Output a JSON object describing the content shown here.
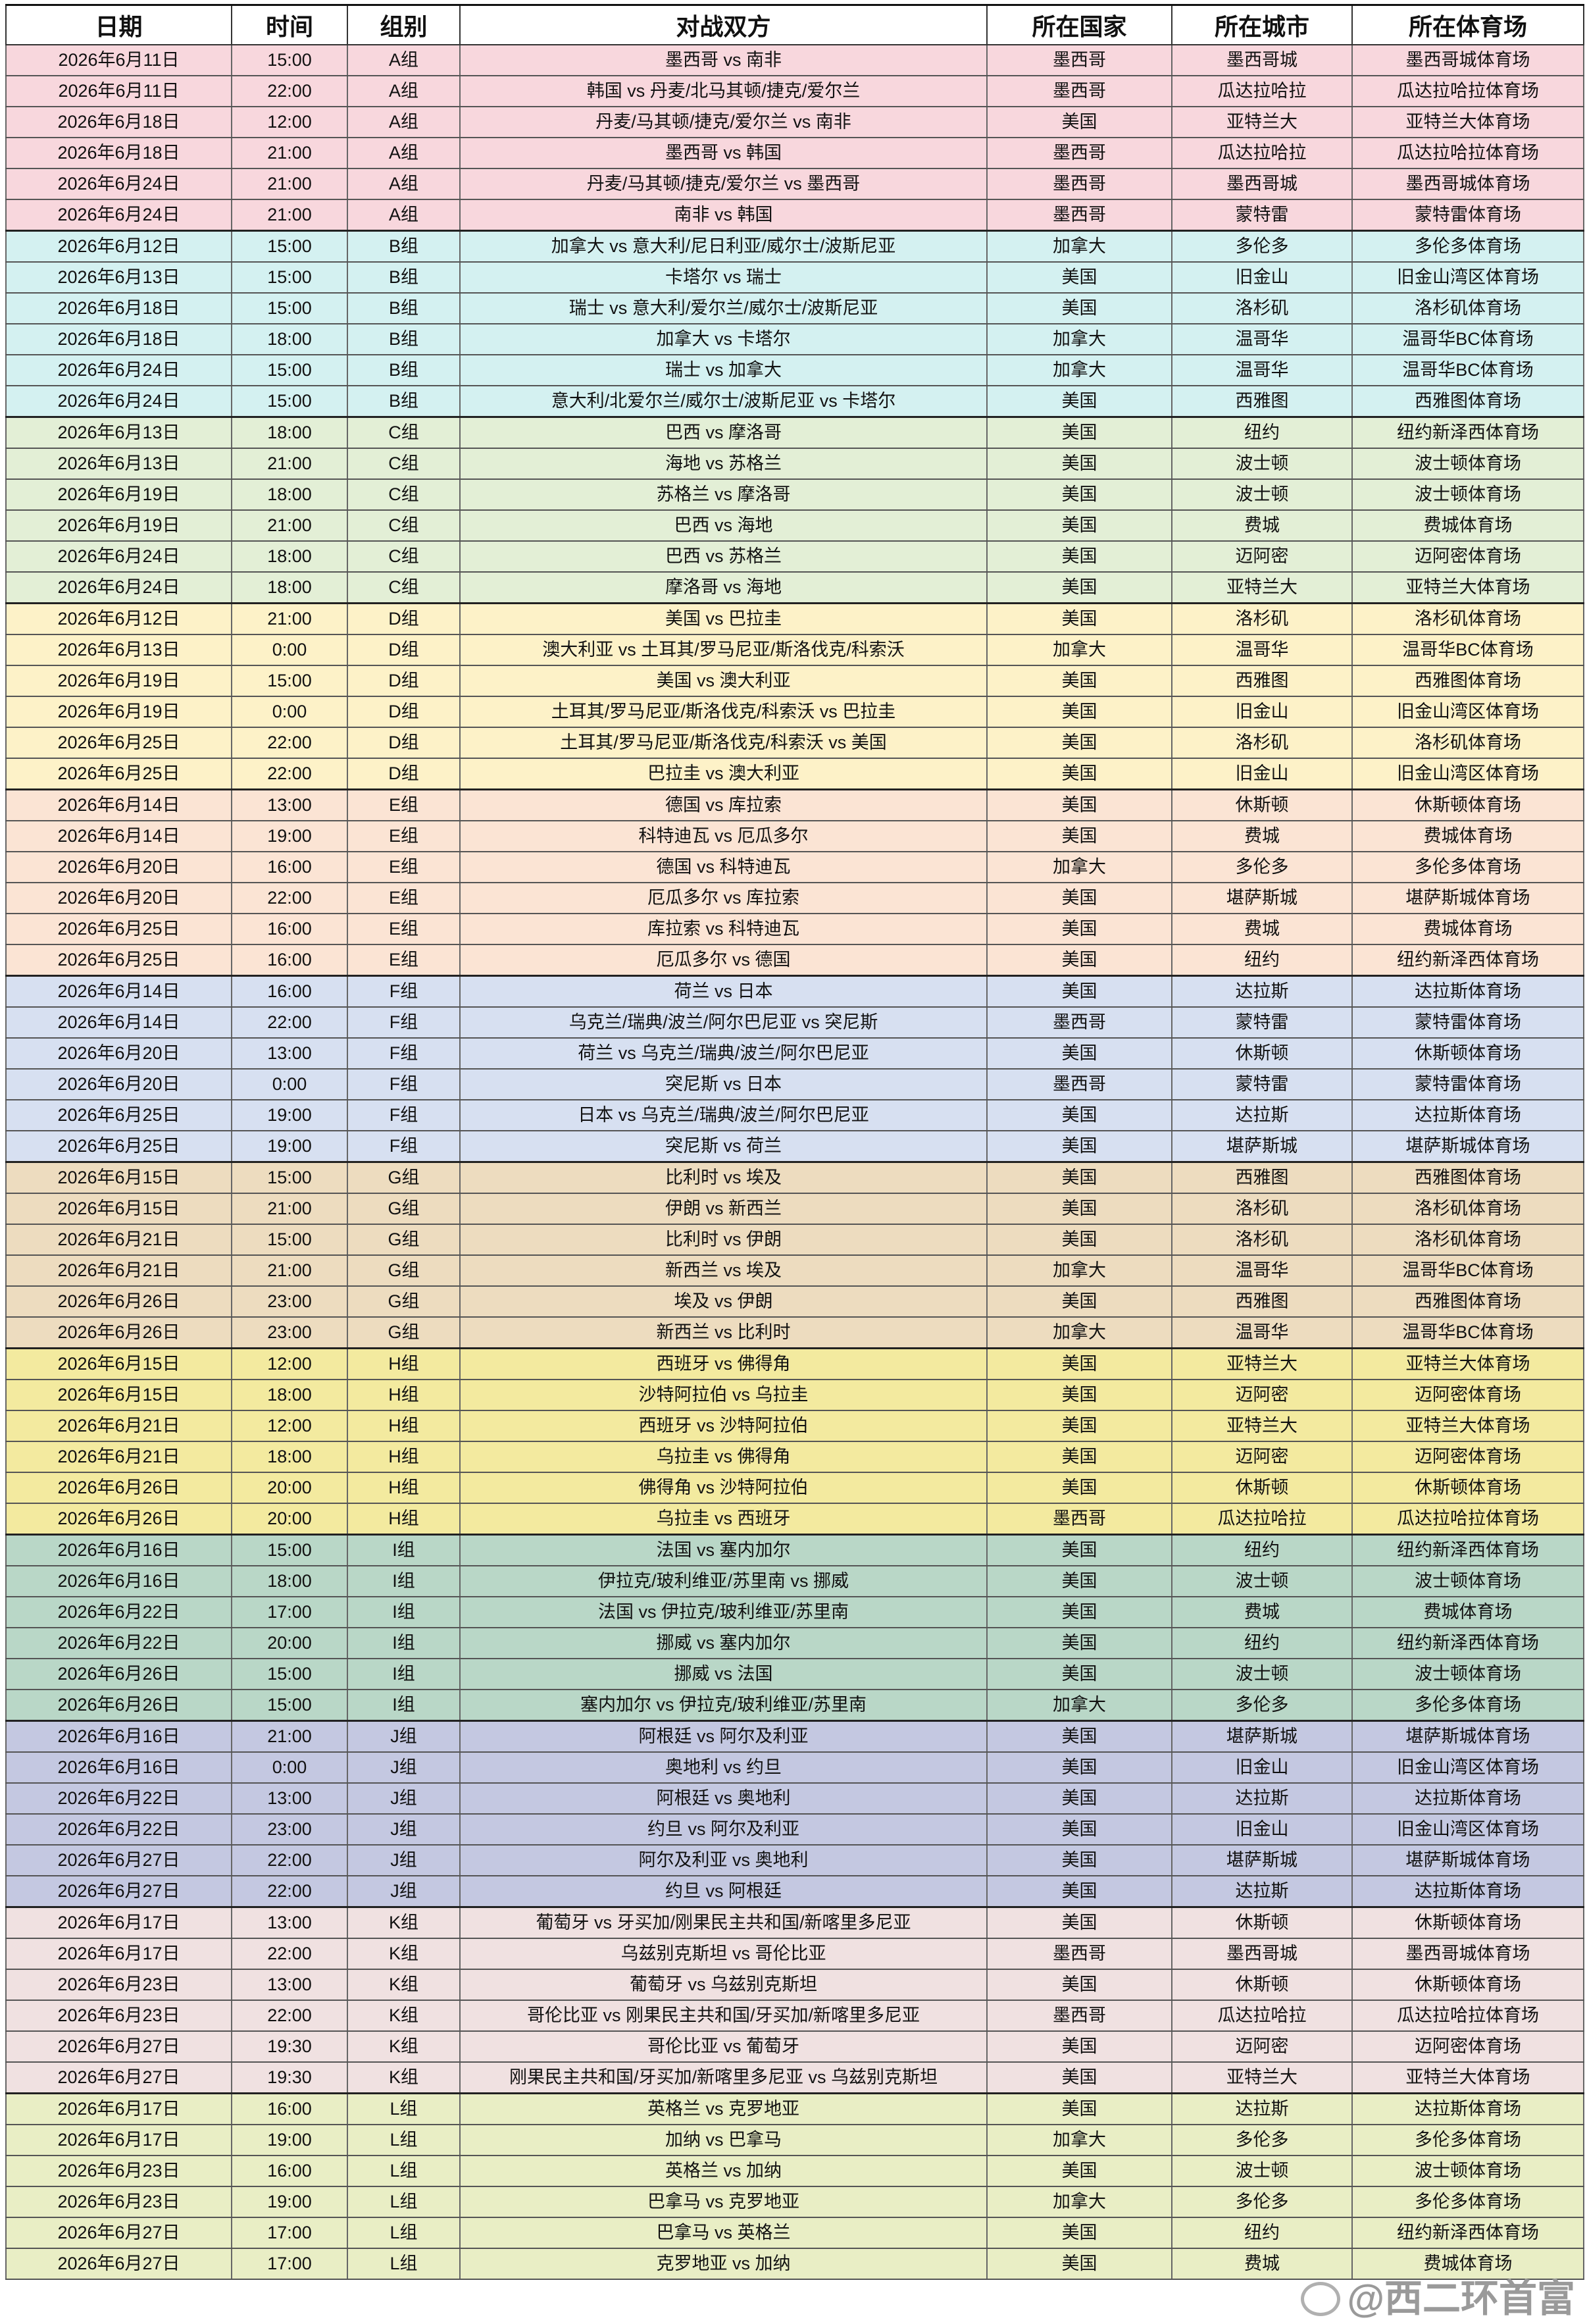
{
  "headers": [
    "日期",
    "时间",
    "组别",
    "对战双方",
    "所在国家",
    "所在城市",
    "所在体育场"
  ],
  "group_colors": {
    "A组": "#f8d7dd",
    "B组": "#d4f1f1",
    "C组": "#e3efd6",
    "D组": "#fdf2c8",
    "E组": "#fbe4d4",
    "F组": "#d7e0f1",
    "G组": "#eddcbf",
    "H组": "#f3ea9f",
    "I组": "#b9d7c7",
    "J组": "#c4c8e1",
    "K组": "#f0e1e1",
    "L组": "#e9eec5"
  },
  "rows": [
    [
      "2026年6月11日",
      "15:00",
      "A组",
      "墨西哥 vs 南非",
      "墨西哥",
      "墨西哥城",
      "墨西哥城体育场"
    ],
    [
      "2026年6月11日",
      "22:00",
      "A组",
      "韩国 vs 丹麦/北马其顿/捷克/爱尔兰",
      "墨西哥",
      "瓜达拉哈拉",
      "瓜达拉哈拉体育场"
    ],
    [
      "2026年6月18日",
      "12:00",
      "A组",
      "丹麦/马其顿/捷克/爱尔兰 vs 南非",
      "美国",
      "亚特兰大",
      "亚特兰大体育场"
    ],
    [
      "2026年6月18日",
      "21:00",
      "A组",
      "墨西哥 vs 韩国",
      "墨西哥",
      "瓜达拉哈拉",
      "瓜达拉哈拉体育场"
    ],
    [
      "2026年6月24日",
      "21:00",
      "A组",
      "丹麦/马其顿/捷克/爱尔兰 vs 墨西哥",
      "墨西哥",
      "墨西哥城",
      "墨西哥城体育场"
    ],
    [
      "2026年6月24日",
      "21:00",
      "A组",
      "南非 vs 韩国",
      "墨西哥",
      "蒙特雷",
      "蒙特雷体育场"
    ],
    [
      "2026年6月12日",
      "15:00",
      "B组",
      "加拿大 vs 意大利/尼日利亚/威尔士/波斯尼亚",
      "加拿大",
      "多伦多",
      "多伦多体育场"
    ],
    [
      "2026年6月13日",
      "15:00",
      "B组",
      "卡塔尔 vs 瑞士",
      "美国",
      "旧金山",
      "旧金山湾区体育场"
    ],
    [
      "2026年6月18日",
      "15:00",
      "B组",
      "瑞士 vs 意大利/爱尔兰/威尔士/波斯尼亚",
      "美国",
      "洛杉矶",
      "洛杉矶体育场"
    ],
    [
      "2026年6月18日",
      "18:00",
      "B组",
      "加拿大 vs 卡塔尔",
      "加拿大",
      "温哥华",
      "温哥华BC体育场"
    ],
    [
      "2026年6月24日",
      "15:00",
      "B组",
      "瑞士 vs 加拿大",
      "加拿大",
      "温哥华",
      "温哥华BC体育场"
    ],
    [
      "2026年6月24日",
      "15:00",
      "B组",
      "意大利/北爱尔兰/威尔士/波斯尼亚 vs 卡塔尔",
      "美国",
      "西雅图",
      "西雅图体育场"
    ],
    [
      "2026年6月13日",
      "18:00",
      "C组",
      "巴西 vs 摩洛哥",
      "美国",
      "纽约",
      "纽约新泽西体育场"
    ],
    [
      "2026年6月13日",
      "21:00",
      "C组",
      "海地 vs 苏格兰",
      "美国",
      "波士顿",
      "波士顿体育场"
    ],
    [
      "2026年6月19日",
      "18:00",
      "C组",
      "苏格兰 vs 摩洛哥",
      "美国",
      "波士顿",
      "波士顿体育场"
    ],
    [
      "2026年6月19日",
      "21:00",
      "C组",
      "巴西 vs 海地",
      "美国",
      "费城",
      "费城体育场"
    ],
    [
      "2026年6月24日",
      "18:00",
      "C组",
      "巴西 vs 苏格兰",
      "美国",
      "迈阿密",
      "迈阿密体育场"
    ],
    [
      "2026年6月24日",
      "18:00",
      "C组",
      "摩洛哥 vs 海地",
      "美国",
      "亚特兰大",
      "亚特兰大体育场"
    ],
    [
      "2026年6月12日",
      "21:00",
      "D组",
      "美国 vs 巴拉圭",
      "美国",
      "洛杉矶",
      "洛杉矶体育场"
    ],
    [
      "2026年6月13日",
      "0:00",
      "D组",
      "澳大利亚 vs 土耳其/罗马尼亚/斯洛伐克/科索沃",
      "加拿大",
      "温哥华",
      "温哥华BC体育场"
    ],
    [
      "2026年6月19日",
      "15:00",
      "D组",
      "美国 vs 澳大利亚",
      "美国",
      "西雅图",
      "西雅图体育场"
    ],
    [
      "2026年6月19日",
      "0:00",
      "D组",
      "土耳其/罗马尼亚/斯洛伐克/科索沃 vs 巴拉圭",
      "美国",
      "旧金山",
      "旧金山湾区体育场"
    ],
    [
      "2026年6月25日",
      "22:00",
      "D组",
      "土耳其/罗马尼亚/斯洛伐克/科索沃 vs 美国",
      "美国",
      "洛杉矶",
      "洛杉矶体育场"
    ],
    [
      "2026年6月25日",
      "22:00",
      "D组",
      "巴拉圭 vs 澳大利亚",
      "美国",
      "旧金山",
      "旧金山湾区体育场"
    ],
    [
      "2026年6月14日",
      "13:00",
      "E组",
      "德国 vs 库拉索",
      "美国",
      "休斯顿",
      "休斯顿体育场"
    ],
    [
      "2026年6月14日",
      "19:00",
      "E组",
      "科特迪瓦 vs 厄瓜多尔",
      "美国",
      "费城",
      "费城体育场"
    ],
    [
      "2026年6月20日",
      "16:00",
      "E组",
      "德国 vs 科特迪瓦",
      "加拿大",
      "多伦多",
      "多伦多体育场"
    ],
    [
      "2026年6月20日",
      "22:00",
      "E组",
      "厄瓜多尔 vs 库拉索",
      "美国",
      "堪萨斯城",
      "堪萨斯城体育场"
    ],
    [
      "2026年6月25日",
      "16:00",
      "E组",
      "库拉索 vs 科特迪瓦",
      "美国",
      "费城",
      "费城体育场"
    ],
    [
      "2026年6月25日",
      "16:00",
      "E组",
      "厄瓜多尔 vs 德国",
      "美国",
      "纽约",
      "纽约新泽西体育场"
    ],
    [
      "2026年6月14日",
      "16:00",
      "F组",
      "荷兰 vs 日本",
      "美国",
      "达拉斯",
      "达拉斯体育场"
    ],
    [
      "2026年6月14日",
      "22:00",
      "F组",
      "乌克兰/瑞典/波兰/阿尔巴尼亚 vs 突尼斯",
      "墨西哥",
      "蒙特雷",
      "蒙特雷体育场"
    ],
    [
      "2026年6月20日",
      "13:00",
      "F组",
      "荷兰 vs 乌克兰/瑞典/波兰/阿尔巴尼亚",
      "美国",
      "休斯顿",
      "休斯顿体育场"
    ],
    [
      "2026年6月20日",
      "0:00",
      "F组",
      "突尼斯 vs 日本",
      "墨西哥",
      "蒙特雷",
      "蒙特雷体育场"
    ],
    [
      "2026年6月25日",
      "19:00",
      "F组",
      "日本 vs 乌克兰/瑞典/波兰/阿尔巴尼亚",
      "美国",
      "达拉斯",
      "达拉斯体育场"
    ],
    [
      "2026年6月25日",
      "19:00",
      "F组",
      "突尼斯 vs 荷兰",
      "美国",
      "堪萨斯城",
      "堪萨斯城体育场"
    ],
    [
      "2026年6月15日",
      "15:00",
      "G组",
      "比利时 vs 埃及",
      "美国",
      "西雅图",
      "西雅图体育场"
    ],
    [
      "2026年6月15日",
      "21:00",
      "G组",
      "伊朗 vs 新西兰",
      "美国",
      "洛杉矶",
      "洛杉矶体育场"
    ],
    [
      "2026年6月21日",
      "15:00",
      "G组",
      "比利时 vs 伊朗",
      "美国",
      "洛杉矶",
      "洛杉矶体育场"
    ],
    [
      "2026年6月21日",
      "21:00",
      "G组",
      "新西兰 vs 埃及",
      "加拿大",
      "温哥华",
      "温哥华BC体育场"
    ],
    [
      "2026年6月26日",
      "23:00",
      "G组",
      "埃及 vs 伊朗",
      "美国",
      "西雅图",
      "西雅图体育场"
    ],
    [
      "2026年6月26日",
      "23:00",
      "G组",
      "新西兰 vs 比利时",
      "加拿大",
      "温哥华",
      "温哥华BC体育场"
    ],
    [
      "2026年6月15日",
      "12:00",
      "H组",
      "西班牙 vs 佛得角",
      "美国",
      "亚特兰大",
      "亚特兰大体育场"
    ],
    [
      "2026年6月15日",
      "18:00",
      "H组",
      "沙特阿拉伯 vs 乌拉圭",
      "美国",
      "迈阿密",
      "迈阿密体育场"
    ],
    [
      "2026年6月21日",
      "12:00",
      "H组",
      "西班牙 vs 沙特阿拉伯",
      "美国",
      "亚特兰大",
      "亚特兰大体育场"
    ],
    [
      "2026年6月21日",
      "18:00",
      "H组",
      "乌拉圭 vs 佛得角",
      "美国",
      "迈阿密",
      "迈阿密体育场"
    ],
    [
      "2026年6月26日",
      "20:00",
      "H组",
      "佛得角 vs 沙特阿拉伯",
      "美国",
      "休斯顿",
      "休斯顿体育场"
    ],
    [
      "2026年6月26日",
      "20:00",
      "H组",
      "乌拉圭 vs 西班牙",
      "墨西哥",
      "瓜达拉哈拉",
      "瓜达拉哈拉体育场"
    ],
    [
      "2026年6月16日",
      "15:00",
      "I组",
      "法国 vs 塞内加尔",
      "美国",
      "纽约",
      "纽约新泽西体育场"
    ],
    [
      "2026年6月16日",
      "18:00",
      "I组",
      "伊拉克/玻利维亚/苏里南 vs 挪威",
      "美国",
      "波士顿",
      "波士顿体育场"
    ],
    [
      "2026年6月22日",
      "17:00",
      "I组",
      "法国 vs 伊拉克/玻利维亚/苏里南",
      "美国",
      "费城",
      "费城体育场"
    ],
    [
      "2026年6月22日",
      "20:00",
      "I组",
      "挪威 vs 塞内加尔",
      "美国",
      "纽约",
      "纽约新泽西体育场"
    ],
    [
      "2026年6月26日",
      "15:00",
      "I组",
      "挪威 vs 法国",
      "美国",
      "波士顿",
      "波士顿体育场"
    ],
    [
      "2026年6月26日",
      "15:00",
      "I组",
      "塞内加尔 vs 伊拉克/玻利维亚/苏里南",
      "加拿大",
      "多伦多",
      "多伦多体育场"
    ],
    [
      "2026年6月16日",
      "21:00",
      "J组",
      "阿根廷 vs 阿尔及利亚",
      "美国",
      "堪萨斯城",
      "堪萨斯城体育场"
    ],
    [
      "2026年6月16日",
      "0:00",
      "J组",
      "奥地利 vs 约旦",
      "美国",
      "旧金山",
      "旧金山湾区体育场"
    ],
    [
      "2026年6月22日",
      "13:00",
      "J组",
      "阿根廷 vs 奥地利",
      "美国",
      "达拉斯",
      "达拉斯体育场"
    ],
    [
      "2026年6月22日",
      "23:00",
      "J组",
      "约旦 vs 阿尔及利亚",
      "美国",
      "旧金山",
      "旧金山湾区体育场"
    ],
    [
      "2026年6月27日",
      "22:00",
      "J组",
      "阿尔及利亚 vs 奥地利",
      "美国",
      "堪萨斯城",
      "堪萨斯城体育场"
    ],
    [
      "2026年6月27日",
      "22:00",
      "J组",
      "约旦 vs 阿根廷",
      "美国",
      "达拉斯",
      "达拉斯体育场"
    ],
    [
      "2026年6月17日",
      "13:00",
      "K组",
      "葡萄牙 vs 牙买加/刚果民主共和国/新喀里多尼亚",
      "美国",
      "休斯顿",
      "休斯顿体育场"
    ],
    [
      "2026年6月17日",
      "22:00",
      "K组",
      "乌兹别克斯坦 vs 哥伦比亚",
      "墨西哥",
      "墨西哥城",
      "墨西哥城体育场"
    ],
    [
      "2026年6月23日",
      "13:00",
      "K组",
      "葡萄牙 vs 乌兹别克斯坦",
      "美国",
      "休斯顿",
      "休斯顿体育场"
    ],
    [
      "2026年6月23日",
      "22:00",
      "K组",
      "哥伦比亚 vs 刚果民主共和国/牙买加/新喀里多尼亚",
      "墨西哥",
      "瓜达拉哈拉",
      "瓜达拉哈拉体育场"
    ],
    [
      "2026年6月27日",
      "19:30",
      "K组",
      "哥伦比亚 vs 葡萄牙",
      "美国",
      "迈阿密",
      "迈阿密体育场"
    ],
    [
      "2026年6月27日",
      "19:30",
      "K组",
      "刚果民主共和国/牙买加/新喀里多尼亚 vs 乌兹别克斯坦",
      "美国",
      "亚特兰大",
      "亚特兰大体育场"
    ],
    [
      "2026年6月17日",
      "16:00",
      "L组",
      "英格兰 vs 克罗地亚",
      "美国",
      "达拉斯",
      "达拉斯体育场"
    ],
    [
      "2026年6月17日",
      "19:00",
      "L组",
      "加纳 vs 巴拿马",
      "加拿大",
      "多伦多",
      "多伦多体育场"
    ],
    [
      "2026年6月23日",
      "16:00",
      "L组",
      "英格兰 vs 加纳",
      "美国",
      "波士顿",
      "波士顿体育场"
    ],
    [
      "2026年6月23日",
      "19:00",
      "L组",
      "巴拿马 vs 克罗地亚",
      "加拿大",
      "多伦多",
      "多伦多体育场"
    ],
    [
      "2026年6月27日",
      "17:00",
      "L组",
      "巴拿马 vs 英格兰",
      "美国",
      "纽约",
      "纽约新泽西体育场"
    ],
    [
      "2026年6月27日",
      "17:00",
      "L组",
      "克罗地亚 vs 加纳",
      "美国",
      "费城",
      "费城体育场"
    ]
  ],
  "watermark": "@西二环首富"
}
